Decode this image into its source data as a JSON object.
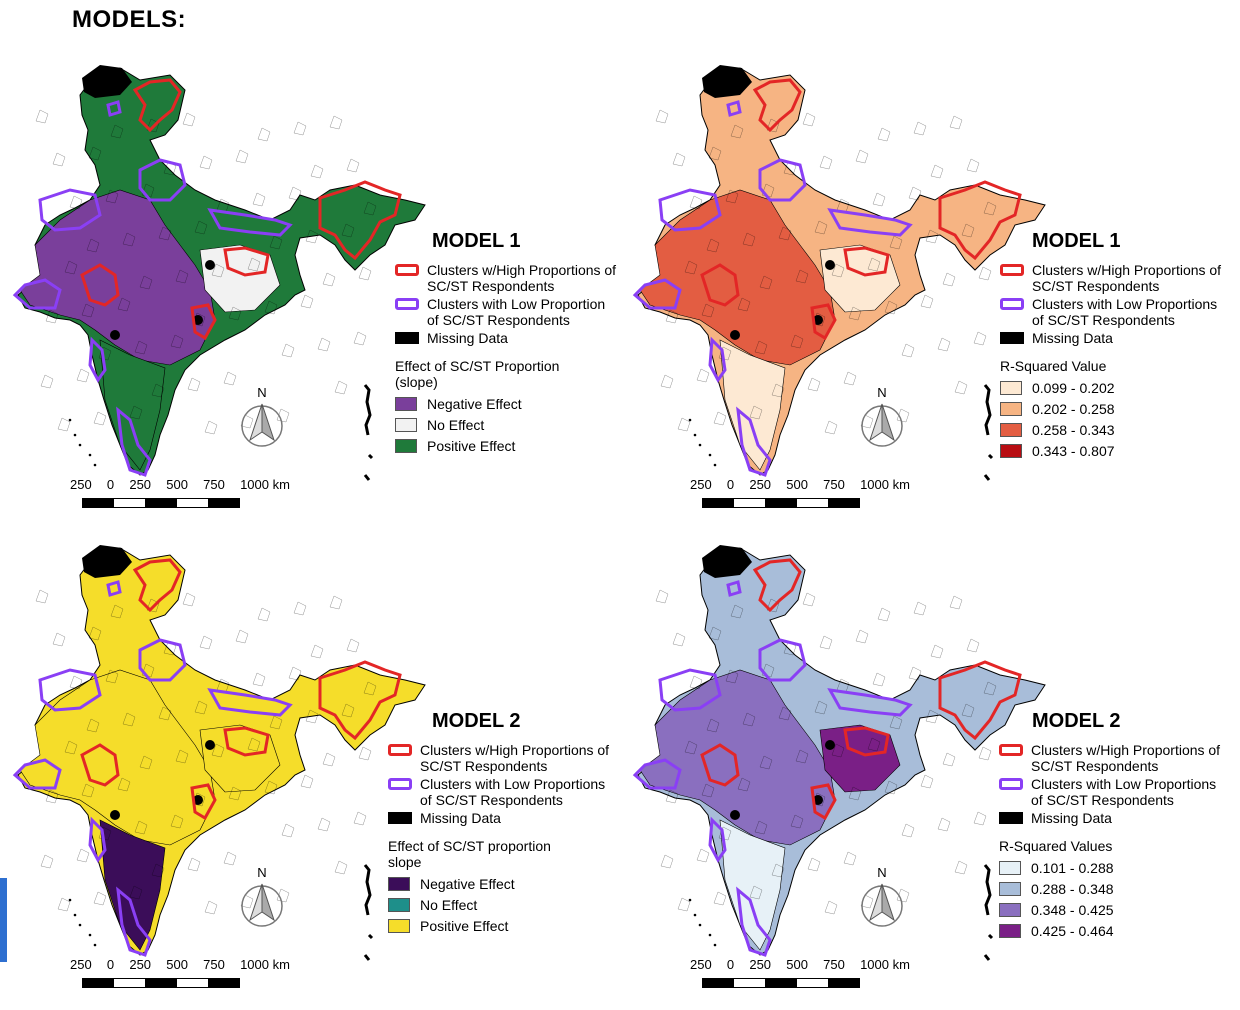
{
  "page": {
    "title": "MODELS:"
  },
  "colors": {
    "high_cluster": "#e32626",
    "low_cluster": "#8a3ff5",
    "missing": "#000000",
    "m1_slope": [
      "#7a3f9b",
      "#f2f2f2",
      "#1f7a3a"
    ],
    "m1_r2": [
      "#fde9d3",
      "#f6b483",
      "#e35d42",
      "#b80d12"
    ],
    "m2_slope": [
      "#3b0d59",
      "#1e8f8a",
      "#f5dd2a"
    ],
    "m2_r2": [
      "#e7f1f7",
      "#a8bdd9",
      "#8a6fbf",
      "#7a1f86"
    ]
  },
  "scalebar": {
    "labels": [
      "250",
      "0",
      "250",
      "500",
      "750",
      "1000 km"
    ]
  },
  "north_label": "N",
  "panels": {
    "tl": {
      "title": "MODEL 1",
      "legend_high": "Clusters w/High Proportions of SC/ST Respondents",
      "legend_low": "Clusters with Low Proportion of SC/ST Respondents",
      "legend_missing": "Missing Data",
      "heading": "Effect of SC/ST Proportion (slope)",
      "classes": [
        "Negative Effect",
        "No Effect",
        "Positive Effect"
      ]
    },
    "tr": {
      "title": "MODEL 1",
      "legend_high": "Clusters w/High Proportions of SC/ST Respondents",
      "legend_low": "Clusters with Low Proportions of SC/ST Respondents",
      "legend_missing": "Missing Data",
      "heading": "R-Squared Value",
      "classes": [
        "0.099 - 0.202",
        "0.202 - 0.258",
        "0.258 - 0.343",
        "0.343 - 0.807"
      ]
    },
    "bl": {
      "title": "MODEL 2",
      "legend_high": "Clusters w/High Proportions of SC/ST Respondents",
      "legend_low": "Clusters with Low Proportions of SC/ST Respondents",
      "legend_missing": "Missing Data",
      "heading": "Effect of SC/ST proportion slope",
      "classes": [
        "Negative Effect",
        "No Effect",
        "Positive Effect"
      ]
    },
    "br": {
      "title": "MODEL 2",
      "legend_high": "Clusters w/High Proportions of SC/ST Respondents",
      "legend_low": "Clusters with Low Proportions of SC/ST Respondents",
      "legend_missing": "Missing Data",
      "heading": "R-Squared Values",
      "classes": [
        "0.101 - 0.288",
        "0.288 - 0.348",
        "0.348 - 0.425",
        "0.425 - 0.464"
      ]
    }
  }
}
